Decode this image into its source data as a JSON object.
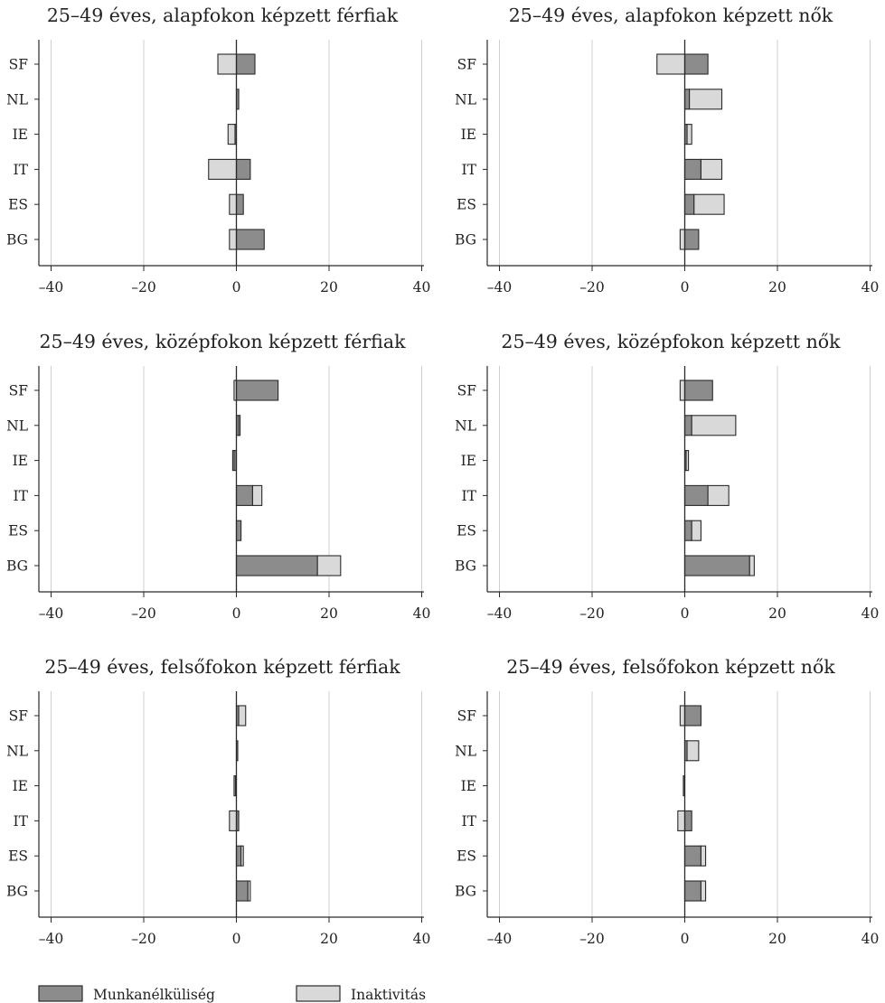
{
  "colors": {
    "unemployment": "#8c8c8c",
    "inactivity": "#d9d9d9",
    "stroke": "#2a2a2a",
    "grid": "#cfcfcf"
  },
  "legend": {
    "unemployment_label": "Munkanélküliség",
    "inactivity_label": "Inaktivitás"
  },
  "chart_data": [
    {
      "type": "bar",
      "title": "25–49 éves, alapfokon képzett férfiak",
      "orientation": "horizontal-diverging",
      "categories": [
        "SF",
        "NL",
        "IE",
        "IT",
        "ES",
        "BG"
      ],
      "xlim": [
        -42,
        42
      ],
      "xticks": [
        -40,
        -20,
        0,
        20,
        40
      ],
      "xtick_labels": [
        "–40",
        "–20",
        "0",
        "20",
        "40"
      ],
      "grid": "vertical",
      "series": [
        {
          "name": "Munkanélküliség",
          "values": [
            4,
            0.5,
            -0.3,
            3,
            1.5,
            6
          ]
        },
        {
          "name": "Inaktivitás",
          "values": [
            -4,
            0,
            -1.5,
            -6,
            -1.5,
            -1.5
          ]
        }
      ]
    },
    {
      "type": "bar",
      "title": "25–49 éves, alapfokon képzett nők",
      "orientation": "horizontal-diverging",
      "categories": [
        "SF",
        "NL",
        "IE",
        "IT",
        "ES",
        "BG"
      ],
      "xlim": [
        -42,
        42
      ],
      "xticks": [
        -40,
        -20,
        0,
        20,
        40
      ],
      "xtick_labels": [
        "–40",
        "–20",
        "0",
        "20",
        "40"
      ],
      "grid": "vertical",
      "series": [
        {
          "name": "Munkanélküliség",
          "values": [
            5,
            1,
            0.5,
            3.5,
            2,
            3
          ]
        },
        {
          "name": "Inaktivitás",
          "values": [
            -6,
            7,
            1,
            4.5,
            6.5,
            -1
          ]
        }
      ]
    },
    {
      "type": "bar",
      "title": "25–49 éves, középfokon képzett férfiak",
      "orientation": "horizontal-diverging",
      "categories": [
        "SF",
        "NL",
        "IE",
        "IT",
        "ES",
        "BG"
      ],
      "xlim": [
        -42,
        42
      ],
      "xticks": [
        -40,
        -20,
        0,
        20,
        40
      ],
      "xtick_labels": [
        "–40",
        "–20",
        "0",
        "20",
        "40"
      ],
      "grid": "vertical",
      "series": [
        {
          "name": "Munkanélküliség",
          "values": [
            9,
            0.5,
            -0.5,
            3.5,
            1,
            17.5
          ]
        },
        {
          "name": "Inaktivitás",
          "values": [
            -0.5,
            0.3,
            -0.3,
            2,
            0,
            5
          ]
        }
      ]
    },
    {
      "type": "bar",
      "title": "25–49 éves, középfokon képzett nők",
      "orientation": "horizontal-diverging",
      "categories": [
        "SF",
        "NL",
        "IE",
        "IT",
        "ES",
        "BG"
      ],
      "xlim": [
        -42,
        42
      ],
      "xticks": [
        -40,
        -20,
        0,
        20,
        40
      ],
      "xtick_labels": [
        "–40",
        "–20",
        "0",
        "20",
        "40"
      ],
      "grid": "vertical",
      "series": [
        {
          "name": "Munkanélküliség",
          "values": [
            6,
            1.5,
            0.3,
            5,
            1.5,
            14
          ]
        },
        {
          "name": "Inaktivitás",
          "values": [
            -1,
            9.5,
            0.5,
            4.5,
            2,
            1
          ]
        }
      ]
    },
    {
      "type": "bar",
      "title": "25–49 éves, felsőfokon képzett férfiak",
      "orientation": "horizontal-diverging",
      "categories": [
        "SF",
        "NL",
        "IE",
        "IT",
        "ES",
        "BG"
      ],
      "xlim": [
        -42,
        42
      ],
      "xticks": [
        -40,
        -20,
        0,
        20,
        40
      ],
      "xtick_labels": [
        "–40",
        "–20",
        "0",
        "20",
        "40"
      ],
      "grid": "vertical",
      "series": [
        {
          "name": "Munkanélküliség",
          "values": [
            0.5,
            0.2,
            -0.3,
            0.5,
            1,
            2.5
          ]
        },
        {
          "name": "Inaktivitás",
          "values": [
            1.5,
            0,
            -0.2,
            -1.5,
            0.5,
            0.5
          ]
        }
      ]
    },
    {
      "type": "bar",
      "title": "25–49 éves, felsőfokon képzett nők",
      "orientation": "horizontal-diverging",
      "categories": [
        "SF",
        "NL",
        "IE",
        "IT",
        "ES",
        "BG"
      ],
      "xlim": [
        -42,
        42
      ],
      "xticks": [
        -40,
        -20,
        0,
        20,
        40
      ],
      "xtick_labels": [
        "–40",
        "–20",
        "0",
        "20",
        "40"
      ],
      "grid": "vertical",
      "series": [
        {
          "name": "Munkanélküliség",
          "values": [
            3.5,
            0.5,
            -0.3,
            1.5,
            3.5,
            3.5
          ]
        },
        {
          "name": "Inaktivitás",
          "values": [
            -1,
            2.5,
            0,
            -1.5,
            1,
            1
          ]
        }
      ]
    }
  ]
}
